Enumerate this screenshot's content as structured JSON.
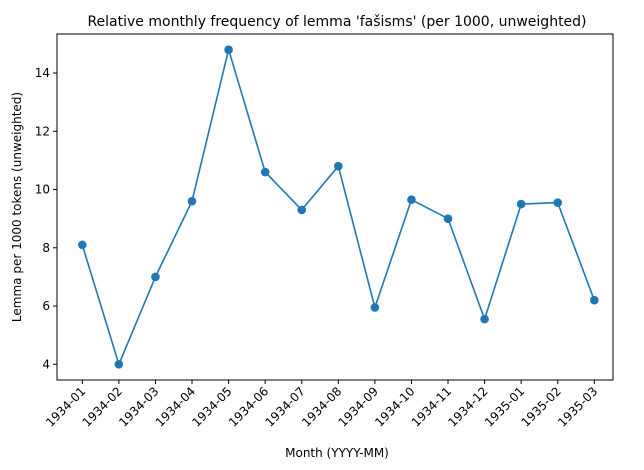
{
  "chart_data": {
    "type": "line",
    "title": "Relative monthly frequency of lemma 'fašisms' (per 1000, unweighted)",
    "xlabel": "Month (YYYY-MM)",
    "ylabel": "Lemma per 1000 tokens (unweighted)",
    "categories": [
      "1934-01",
      "1934-02",
      "1934-03",
      "1934-04",
      "1934-05",
      "1934-06",
      "1934-07",
      "1934-08",
      "1934-09",
      "1934-10",
      "1934-11",
      "1934-12",
      "1935-01",
      "1935-02",
      "1935-03"
    ],
    "series": [
      {
        "values": [
          8.1,
          4.0,
          7.0,
          9.6,
          14.8,
          10.6,
          9.3,
          10.8,
          5.95,
          9.65,
          9.0,
          5.55,
          9.5,
          9.55,
          6.2
        ]
      }
    ],
    "yticks": [
      4,
      6,
      8,
      10,
      12,
      14
    ],
    "ylim": [
      3.46,
      15.34
    ],
    "grid": false,
    "color": "#1f77b4"
  }
}
